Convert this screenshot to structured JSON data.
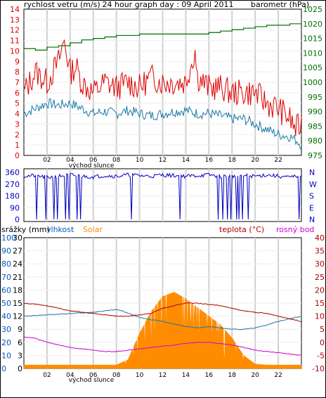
{
  "page_title": "24 hour graph day : 09 April 2011",
  "colors": {
    "wind_gust": "#e00000",
    "wind_avg": "#1878a8",
    "barometer": "#007000",
    "direction": "#0000c0",
    "rain": "#0058c0",
    "humidity": "#1878a8",
    "solar": "#ff8c00",
    "temperature": "#b00000",
    "dew_point": "#d000d0",
    "grid": "#d0d0d0"
  },
  "x_ticks": [
    "02",
    "04",
    "06",
    "08",
    "10",
    "12",
    "14",
    "16",
    "18",
    "20",
    "22"
  ],
  "sunrise_label": "východ slunce",
  "chart_data": [
    {
      "type": "line",
      "title": "24 hour graph day : 09 April 2011",
      "left_label": "rychlost vetru (m/s)",
      "right_label": "barometr (hPa)",
      "left_ticks": [
        "0",
        "1",
        "2",
        "3",
        "4",
        "5",
        "6",
        "7",
        "8",
        "9",
        "10",
        "11",
        "12",
        "13",
        "14"
      ],
      "right_ticks": [
        "975",
        "980",
        "985",
        "990",
        "995",
        "1000",
        "1005",
        "1010",
        "1015",
        "1020",
        "1025"
      ],
      "ylim_left": [
        0,
        14
      ],
      "ylim_right": [
        975,
        1025
      ],
      "x_unit": "hour",
      "series": [
        {
          "key": "gust",
          "axis": "left",
          "x": [
            0,
            1,
            2,
            3,
            3.5,
            4,
            4.5,
            5,
            6,
            7,
            8,
            9,
            10,
            11,
            12,
            13,
            14,
            14.8,
            15,
            16,
            17,
            18,
            19,
            20,
            21,
            22,
            22.5,
            23,
            23.5,
            24
          ],
          "values": [
            6,
            8,
            7,
            9,
            11,
            8,
            8.5,
            7,
            6,
            7,
            6.5,
            7,
            6.5,
            7.5,
            7,
            7,
            7,
            10,
            7.5,
            6.5,
            6.5,
            6,
            6,
            6,
            5,
            4.5,
            4,
            3.5,
            2.5,
            3
          ]
        },
        {
          "key": "average",
          "axis": "left",
          "x": [
            0,
            1,
            2,
            3,
            4,
            5,
            6,
            7,
            8,
            9,
            10,
            11,
            12,
            13,
            14,
            15,
            16,
            17,
            18,
            19,
            20,
            21,
            22,
            23,
            23.5,
            24
          ],
          "values": [
            4,
            4.5,
            5,
            4.8,
            5,
            4.5,
            4,
            4.2,
            4,
            4.3,
            4,
            3.8,
            4,
            4.2,
            4.3,
            4,
            4,
            3.8,
            3.5,
            3.5,
            3,
            2.5,
            2,
            1.8,
            1.5,
            1
          ]
        },
        {
          "key": "barometer",
          "axis": "right",
          "x": [
            0,
            1,
            2,
            3,
            4,
            5,
            6,
            7,
            8,
            9,
            10,
            11,
            12,
            13,
            14,
            15,
            16,
            17,
            18,
            19,
            20,
            21,
            22,
            23,
            24
          ],
          "values": [
            1011.5,
            1011,
            1012,
            1012.5,
            1013.5,
            1014.5,
            1015,
            1015.5,
            1016,
            1016,
            1016.5,
            1016.5,
            1016.5,
            1016.5,
            1016.5,
            1016.5,
            1017,
            1017.5,
            1018,
            1018.5,
            1019,
            1019.5,
            1019.5,
            1020,
            1020.5
          ]
        }
      ]
    },
    {
      "type": "line",
      "left_ticks": [
        "360",
        "270",
        "180",
        "90",
        "0"
      ],
      "right_ticks": [
        "N",
        "W",
        "S",
        "E",
        "N"
      ],
      "ylim": [
        0,
        360
      ],
      "series": [
        {
          "key": "direction",
          "x": [
            0,
            1,
            2,
            3,
            4,
            5,
            6,
            7,
            8,
            9,
            10,
            11,
            12,
            13,
            14,
            15,
            16,
            17,
            18,
            19,
            20,
            21,
            22,
            23,
            24
          ],
          "values": [
            330,
            335,
            320,
            330,
            340,
            330,
            325,
            335,
            330,
            340,
            335,
            330,
            340,
            335,
            330,
            335,
            340,
            330,
            330,
            335,
            330,
            340,
            330,
            320,
            340
          ],
          "drops_to_zero_at": [
            1.1,
            1.9,
            2.6,
            2.9,
            3.6,
            3.9,
            4.6,
            4.9,
            9.3,
            13.5,
            16.8,
            17.2,
            17.6,
            17.9,
            18.4,
            18.6,
            18.9,
            19.4,
            23.8
          ]
        }
      ]
    },
    {
      "type": "area",
      "left_labels": [
        "srážky (mm)",
        "vlhkost",
        "Solar"
      ],
      "right_labels": [
        "teplota (°C)",
        "rosný bod"
      ],
      "rain_ticks": [
        "0",
        "3",
        "6",
        "9",
        "12",
        "15",
        "18",
        "21",
        "24",
        "27",
        "30"
      ],
      "humidity_ticks": [
        "0",
        "10",
        "20",
        "30",
        "40",
        "50",
        "60",
        "70",
        "80",
        "90",
        "100"
      ],
      "right_ticks": [
        "-10",
        "-5",
        "0",
        "5",
        "10",
        "15",
        "20",
        "25",
        "30",
        "35",
        "40"
      ],
      "ylim_left": [
        0,
        30
      ],
      "ylim_right": [
        -10,
        40
      ],
      "series": [
        {
          "key": "solar",
          "axis": "rain",
          "x": [
            0,
            5,
            6,
            7,
            8,
            9,
            10,
            11,
            12,
            13,
            14,
            15,
            16,
            17,
            18,
            19,
            20,
            21,
            22,
            23,
            24
          ],
          "values": [
            0.8,
            0.8,
            0.8,
            0.8,
            0.8,
            2,
            8,
            13,
            16.5,
            17.5,
            16,
            14,
            12,
            10,
            7,
            3,
            1,
            0.8,
            0.8,
            0.8,
            0.8
          ]
        },
        {
          "key": "temperature",
          "axis": "right",
          "x": [
            0,
            1,
            2,
            3,
            4,
            5,
            6,
            7,
            8,
            9,
            10,
            11,
            12,
            13,
            14,
            15,
            16,
            17,
            18,
            19,
            20,
            21,
            22,
            23,
            24
          ],
          "values": [
            15,
            14.5,
            14,
            13,
            12,
            11.5,
            11,
            10.5,
            10,
            10,
            10.5,
            11,
            13,
            14,
            15,
            15,
            14.5,
            14,
            13,
            12,
            11.5,
            11,
            10,
            9,
            8
          ]
        },
        {
          "key": "humidity",
          "axis": "humidity",
          "x": [
            0,
            2,
            4,
            6,
            8,
            8.5,
            10,
            10.5,
            12,
            13,
            14,
            15,
            16,
            17,
            18,
            19,
            20,
            21,
            22,
            23,
            24
          ],
          "values": [
            40,
            41,
            42,
            43,
            45,
            44,
            39,
            38,
            36,
            34,
            32,
            31,
            32,
            31,
            30,
            30,
            31,
            33,
            36,
            38,
            40
          ]
        },
        {
          "key": "dew_point",
          "axis": "right",
          "x": [
            0,
            1,
            2,
            3,
            4,
            5,
            6,
            7,
            8,
            9,
            10,
            11,
            12,
            13,
            14,
            15,
            16,
            17,
            18,
            19,
            20,
            21,
            22,
            23,
            24
          ],
          "values": [
            2,
            1.5,
            0,
            -1,
            -2,
            -2.5,
            -3,
            -3.5,
            -3.5,
            -3,
            -2.5,
            -2,
            -1.5,
            -1,
            -0.5,
            0,
            0,
            -0.5,
            -1,
            -2,
            -3,
            -3.5,
            -4,
            -4.5,
            -5
          ]
        }
      ]
    }
  ]
}
